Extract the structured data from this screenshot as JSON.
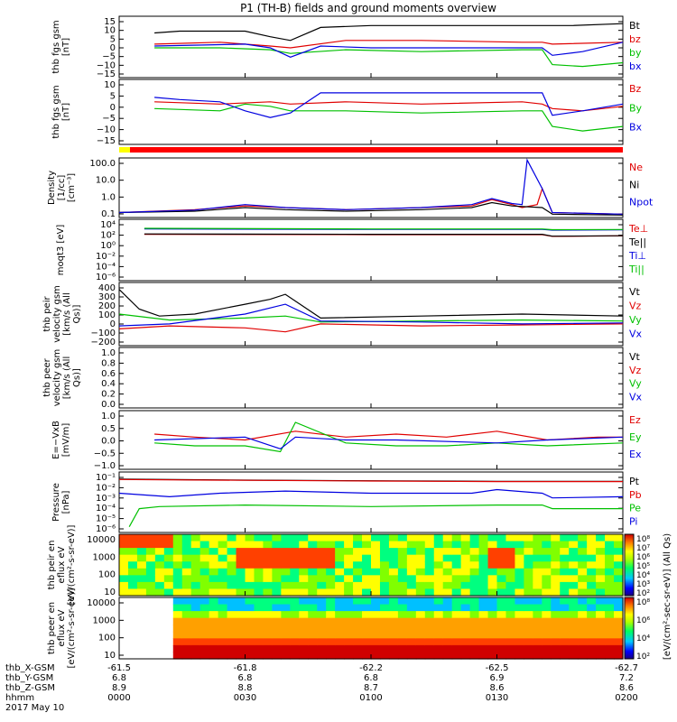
{
  "title": "P1 (TH-B) fields and ground moments overview",
  "colors": {
    "black": "#000000",
    "red": "#e00000",
    "green": "#00c000",
    "blue": "#0000e0",
    "mag": "#ff0000",
    "flag_yellow": "#ffff00"
  },
  "footer": {
    "row_labels": [
      "thb_X-GSM",
      "thb_Y-GSM",
      "thb_Z-GSM",
      "hhmm",
      "2017 May 10"
    ],
    "columns": [
      [
        "-61.5",
        "6.8",
        "8.9",
        "0000"
      ],
      [
        "-61.8",
        "6.8",
        "8.8",
        "0030"
      ],
      [
        "-62.2",
        "6.8",
        "8.7",
        "0100"
      ],
      [
        "-62.5",
        "6.9",
        "8.6",
        "0130"
      ],
      [
        "-62.7",
        "7.2",
        "8.6",
        "0200"
      ]
    ]
  },
  "colorbar": {
    "label": "[eV/(cm²-sec-sr-eV)] (All Qs)",
    "top_ticks": [
      "10⁸",
      "10⁷",
      "10⁶",
      "10⁵",
      "10⁴",
      "10³",
      "10²"
    ],
    "bottom_ticks": [
      "10⁸",
      "10⁶",
      "10⁴",
      "10²"
    ]
  },
  "chart_data": [
    {
      "type": "line",
      "ylabel": "thb fgs gsm [nT]",
      "ylim": [
        -17,
        16
      ],
      "yticks": [
        "15",
        "10",
        "5",
        "0",
        "−5",
        "−10",
        "−15"
      ],
      "series": [
        {
          "name": "Bt",
          "color": "black",
          "x": [
            0.07,
            0.12,
            0.25,
            0.3,
            0.34,
            0.4,
            0.5,
            0.6,
            0.7,
            0.8,
            0.84,
            0.86,
            0.9,
            1.0
          ],
          "y": [
            7,
            8,
            8,
            5,
            3,
            10,
            11,
            11,
            11,
            11,
            11,
            11,
            11,
            12
          ]
        },
        {
          "name": "bz",
          "color": "red",
          "x": [
            0.07,
            0.2,
            0.3,
            0.34,
            0.45,
            0.6,
            0.8,
            0.84,
            0.86,
            1.0
          ],
          "y": [
            1,
            2,
            0,
            -1,
            3,
            3,
            2,
            2,
            1,
            2
          ]
        },
        {
          "name": "by",
          "color": "green",
          "x": [
            0.07,
            0.2,
            0.3,
            0.34,
            0.45,
            0.6,
            0.8,
            0.84,
            0.86,
            0.92,
            1.0
          ],
          "y": [
            -1,
            -1,
            -2,
            -4,
            -2,
            -3,
            -2,
            -2,
            -10,
            -11,
            -9
          ]
        },
        {
          "name": "bx",
          "color": "blue",
          "x": [
            0.07,
            0.25,
            0.3,
            0.34,
            0.4,
            0.5,
            0.7,
            0.84,
            0.86,
            0.92,
            1.0
          ],
          "y": [
            0,
            1,
            -1,
            -6,
            0,
            -1,
            -1,
            -1,
            -5,
            -3,
            2
          ]
        }
      ]
    },
    {
      "type": "line",
      "ylabel": "thb fgs gsm [nT]",
      "ylim": [
        -18,
        11
      ],
      "yticks": [
        "10",
        "5",
        "0",
        "−5",
        "−10",
        "−15"
      ],
      "series": [
        {
          "name": "Bz",
          "color": "red",
          "x": [
            0.07,
            0.2,
            0.3,
            0.34,
            0.45,
            0.6,
            0.8,
            0.84,
            0.86,
            0.92,
            1.0
          ],
          "y": [
            1,
            0,
            1,
            0,
            1,
            0,
            1,
            0,
            -2,
            -3,
            -1
          ]
        },
        {
          "name": "By",
          "color": "green",
          "x": [
            0.07,
            0.2,
            0.25,
            0.3,
            0.34,
            0.45,
            0.6,
            0.8,
            0.84,
            0.86,
            0.92,
            1.0
          ],
          "y": [
            -2,
            -3,
            0,
            -1,
            -3,
            -3,
            -4,
            -3,
            -3,
            -10,
            -12,
            -10
          ]
        },
        {
          "name": "Bx",
          "color": "blue",
          "x": [
            0.07,
            0.12,
            0.2,
            0.25,
            0.3,
            0.34,
            0.4,
            0.5,
            0.7,
            0.84,
            0.86,
            0.92,
            1.0
          ],
          "y": [
            3,
            2,
            1,
            -3,
            -6,
            -4,
            5,
            5,
            5,
            5,
            -5,
            -3,
            0
          ]
        }
      ]
    },
    {
      "type": "line",
      "ylabel": "Density [1/cc] [cm⁻³]",
      "yscale": "log",
      "ylim": [
        0.05,
        200
      ],
      "yticks": [
        "100.0",
        "10.0",
        "1.0",
        "0.1"
      ],
      "series": [
        {
          "name": "Ne",
          "color": "red",
          "x": [
            0.0,
            0.15,
            0.25,
            0.33,
            0.45,
            0.6,
            0.7,
            0.74,
            0.78,
            0.8,
            0.83,
            0.84,
            0.86,
            1.0
          ],
          "y": [
            0.1,
            0.15,
            0.25,
            0.2,
            0.15,
            0.2,
            0.25,
            0.6,
            0.3,
            0.2,
            0.3,
            2.8,
            0.1,
            0.08
          ]
        },
        {
          "name": "Ni",
          "color": "black",
          "x": [
            0.0,
            0.15,
            0.25,
            0.33,
            0.45,
            0.6,
            0.7,
            0.74,
            0.78,
            0.84,
            0.86,
            1.0
          ],
          "y": [
            0.1,
            0.12,
            0.2,
            0.15,
            0.12,
            0.15,
            0.2,
            0.4,
            0.25,
            0.2,
            0.08,
            0.07
          ]
        },
        {
          "name": "Npot",
          "color": "blue",
          "x": [
            0.0,
            0.15,
            0.25,
            0.33,
            0.45,
            0.6,
            0.7,
            0.74,
            0.78,
            0.8,
            0.81,
            0.84,
            0.86,
            1.0
          ],
          "y": [
            0.1,
            0.14,
            0.3,
            0.2,
            0.15,
            0.2,
            0.3,
            0.7,
            0.35,
            0.3,
            150,
            2.8,
            0.1,
            0.08
          ]
        }
      ]
    },
    {
      "type": "line",
      "ylabel": "moqt3 [eV]",
      "yscale": "log",
      "ylim": [
        5e-07,
        200000
      ],
      "yticks": [
        "10⁴",
        "10²",
        "10⁰",
        "10⁻²",
        "10⁻⁴",
        "10⁻⁶"
      ],
      "series": [
        {
          "name": "Te⊥",
          "color": "red",
          "x": [
            0.05,
            0.5,
            0.84,
            0.86,
            1.0
          ],
          "y": [
            300,
            250,
            250,
            120,
            150
          ]
        },
        {
          "name": "Te||",
          "color": "black",
          "x": [
            0.05,
            0.5,
            0.84,
            0.86,
            1.0
          ],
          "y": [
            350,
            300,
            300,
            130,
            160
          ]
        },
        {
          "name": "Ti⊥",
          "color": "blue",
          "x": [
            0.05,
            0.5,
            0.84,
            0.86,
            1.0
          ],
          "y": [
            3000,
            2500,
            2500,
            1800,
            2000
          ]
        },
        {
          "name": "Ti||",
          "color": "green",
          "x": [
            0.05,
            0.5,
            0.84,
            0.86,
            1.0
          ],
          "y": [
            4000,
            3000,
            3000,
            2200,
            2400
          ]
        }
      ]
    },
    {
      "type": "line",
      "ylabel": "thb peir velocity gsm [km/s (All Qs)]",
      "ylim": [
        -220,
        420
      ],
      "yticks": [
        "400",
        "300",
        "200",
        "100",
        "0",
        "−100",
        "−200"
      ],
      "series": [
        {
          "name": "Vt",
          "color": "black",
          "x": [
            0.0,
            0.04,
            0.08,
            0.15,
            0.25,
            0.3,
            0.33,
            0.4,
            0.6,
            0.8,
            1.0
          ],
          "y": [
            350,
            150,
            80,
            100,
            200,
            250,
            300,
            60,
            80,
            100,
            80
          ]
        },
        {
          "name": "Vz",
          "color": "red",
          "x": [
            0.0,
            0.1,
            0.25,
            0.33,
            0.4,
            0.6,
            0.8,
            1.0
          ],
          "y": [
            -50,
            -20,
            -40,
            -80,
            0,
            -20,
            -10,
            0
          ]
        },
        {
          "name": "Vy",
          "color": "green",
          "x": [
            0.0,
            0.1,
            0.25,
            0.33,
            0.4,
            0.6,
            0.8,
            1.0
          ],
          "y": [
            100,
            40,
            60,
            80,
            20,
            30,
            40,
            30
          ]
        },
        {
          "name": "Vx",
          "color": "blue",
          "x": [
            0.0,
            0.1,
            0.25,
            0.33,
            0.4,
            0.6,
            0.8,
            1.0
          ],
          "y": [
            -20,
            0,
            100,
            200,
            30,
            20,
            0,
            10
          ]
        }
      ]
    },
    {
      "type": "line",
      "ylabel": "thb peer velocity gsm [km/s (All Qs)]",
      "ylim": [
        0,
        1
      ],
      "yticks": [
        "1.0",
        "0.8",
        "0.6",
        "0.4",
        "0.2",
        "0.0"
      ],
      "series": [
        {
          "name": "Vt",
          "color": "black",
          "x": [],
          "y": []
        },
        {
          "name": "Vz",
          "color": "red",
          "x": [],
          "y": []
        },
        {
          "name": "Vy",
          "color": "green",
          "x": [],
          "y": []
        },
        {
          "name": "Vx",
          "color": "blue",
          "x": [],
          "y": []
        }
      ]
    },
    {
      "type": "line",
      "ylabel": "E=−VxB [mV/m]",
      "ylim": [
        -1,
        1
      ],
      "yticks": [
        "1.0",
        "0.5",
        "0.0",
        "−0.5",
        "−1.0"
      ],
      "series": [
        {
          "name": "Ez",
          "color": "red",
          "x": [
            0.07,
            0.15,
            0.25,
            0.35,
            0.45,
            0.55,
            0.65,
            0.75,
            0.85,
            0.95,
            1.0
          ],
          "y": [
            0.2,
            0.1,
            0.0,
            0.3,
            0.1,
            0.2,
            0.1,
            0.3,
            0.0,
            0.1,
            0.1
          ]
        },
        {
          "name": "Ey",
          "color": "green",
          "x": [
            0.07,
            0.15,
            0.25,
            0.32,
            0.35,
            0.45,
            0.55,
            0.65,
            0.75,
            0.85,
            1.0
          ],
          "y": [
            -0.1,
            -0.2,
            -0.2,
            -0.4,
            0.6,
            -0.1,
            -0.2,
            -0.2,
            -0.1,
            -0.2,
            -0.1
          ]
        },
        {
          "name": "Ex",
          "color": "blue",
          "x": [
            0.07,
            0.25,
            0.32,
            0.35,
            0.45,
            0.55,
            0.75,
            0.85,
            1.0
          ],
          "y": [
            0.0,
            0.1,
            -0.3,
            0.1,
            0.0,
            0.0,
            -0.1,
            0.0,
            0.1
          ]
        }
      ]
    },
    {
      "type": "line",
      "ylabel": "Pressure [nPa]",
      "yscale": "log",
      "ylim": [
        1e-06,
        0.12
      ],
      "yticks": [
        "10⁻¹",
        "10⁻²",
        "10⁻³",
        "10⁻⁴",
        "10⁻⁵",
        "10⁻⁶"
      ],
      "series": [
        {
          "name": "Pt",
          "color": "black",
          "x": [
            0.0,
            0.25,
            0.5,
            0.75,
            1.0
          ],
          "y": [
            0.03,
            0.025,
            0.022,
            0.02,
            0.02
          ]
        },
        {
          "name": "Pb",
          "color": "red",
          "x": [
            0.0,
            0.25,
            0.5,
            0.75,
            1.0
          ],
          "y": [
            0.028,
            0.024,
            0.021,
            0.019,
            0.019
          ]
        },
        {
          "name": "Pe",
          "color": "green",
          "x": [
            0.02,
            0.04,
            0.08,
            0.25,
            0.5,
            0.75,
            0.84,
            0.86,
            1.0
          ],
          "y": [
            3e-06,
            0.0001,
            0.00015,
            0.0002,
            0.00015,
            0.0002,
            0.0002,
            0.0001,
            0.0001
          ]
        },
        {
          "name": "Pi",
          "color": "blue",
          "x": [
            0.0,
            0.1,
            0.2,
            0.33,
            0.5,
            0.7,
            0.75,
            0.84,
            0.86,
            1.0
          ],
          "y": [
            0.002,
            0.001,
            0.002,
            0.003,
            0.002,
            0.002,
            0.004,
            0.002,
            0.0008,
            0.001
          ]
        }
      ]
    },
    {
      "type": "heatmap",
      "ylabel": "thb peir en eflux eV [eV/(cm²-s-sr-eV)]",
      "yscale": "log",
      "yticks": [
        "10000",
        "1000",
        "100",
        "10"
      ],
      "ylim": [
        5,
        20000
      ],
      "zlim": [
        100,
        100000000
      ]
    },
    {
      "type": "heatmap",
      "ylabel": "thb peer en eflux eV [eV/(cm²-s-sr-eV)]",
      "yscale": "log",
      "yticks": [
        "10000",
        "1000",
        "100",
        "10"
      ],
      "ylim": [
        5,
        20000
      ],
      "zlim": [
        100,
        100000000
      ]
    }
  ]
}
